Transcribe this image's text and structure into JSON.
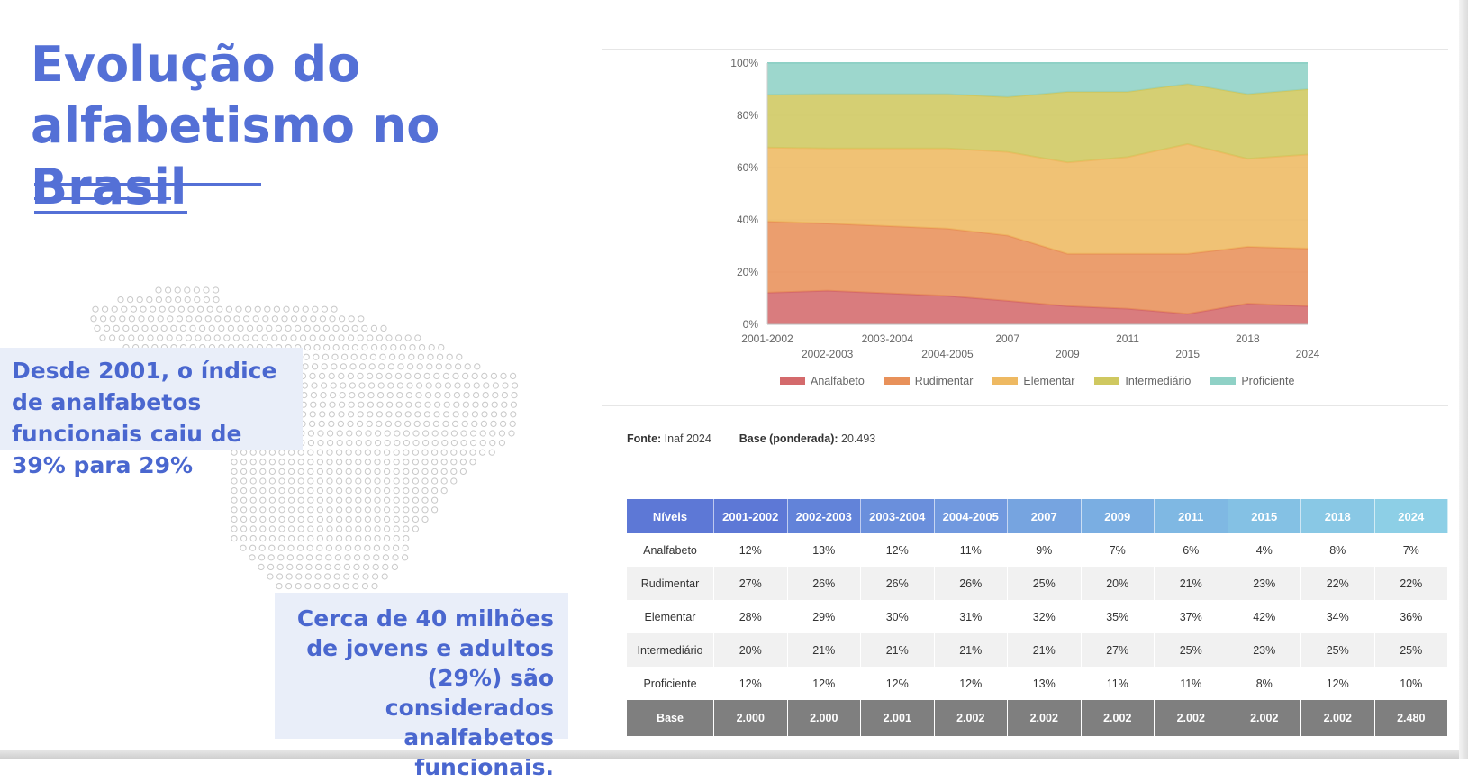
{
  "slide": {
    "title": "Evolução do alfabetismo no Brasil",
    "accent_color": "#5470d6",
    "callout_1": "Desde 2001, o índice de analfabetos funcionais caiu de 39% para 29%",
    "callout_2": "Cerca de 40 milhões de jovens e adultos (29%) são considerados analfabetos funcionais.",
    "decoration": "dotted-brazil-map"
  },
  "chart_data": {
    "type": "area",
    "stacked": true,
    "percent_stacked": true,
    "x": [
      "2001-2002",
      "2002-2003",
      "2003-2004",
      "2004-2005",
      "2007",
      "2009",
      "2011",
      "2015",
      "2018",
      "2024"
    ],
    "series": [
      {
        "name": "Analfabeto",
        "color": "#d46a6c",
        "values": [
          12,
          13,
          12,
          11,
          9,
          7,
          6,
          4,
          8,
          7
        ]
      },
      {
        "name": "Rudimentar",
        "color": "#e8915a",
        "values": [
          27,
          26,
          26,
          26,
          25,
          20,
          21,
          23,
          22,
          22
        ]
      },
      {
        "name": "Elementar",
        "color": "#eeb962",
        "values": [
          28,
          29,
          30,
          31,
          32,
          35,
          37,
          42,
          34,
          36
        ]
      },
      {
        "name": "Intermediário",
        "color": "#cfc860",
        "values": [
          20,
          21,
          21,
          21,
          21,
          27,
          25,
          23,
          25,
          25
        ]
      },
      {
        "name": "Proficiente",
        "color": "#8fd1c6",
        "values": [
          12,
          12,
          12,
          12,
          13,
          11,
          11,
          8,
          12,
          10
        ]
      }
    ],
    "y_ticks": [
      "0%",
      "20%",
      "40%",
      "60%",
      "80%",
      "100%"
    ],
    "ylim": [
      0,
      100
    ],
    "grid": true,
    "legend": "bottom"
  },
  "source": {
    "fonte_label": "Fonte:",
    "fonte_value": "Inaf 2024",
    "base_label": "Base (ponderada):",
    "base_value": "20.493"
  },
  "table": {
    "header_label": "Níveis",
    "columns": [
      "2001-2002",
      "2002-2003",
      "2003-2004",
      "2004-2005",
      "2007",
      "2009",
      "2011",
      "2015",
      "2018",
      "2024"
    ],
    "header_colors": [
      "#5d78d6",
      "#6283d9",
      "#6a8fdc",
      "#7199df",
      "#76a4e0",
      "#7aaee2",
      "#7fb8e3",
      "#84c1e4",
      "#89c8e5",
      "#8dcfe6"
    ],
    "rows": [
      {
        "label": "Analfabeto",
        "cells": [
          "12%",
          "13%",
          "12%",
          "11%",
          "9%",
          "7%",
          "6%",
          "4%",
          "8%",
          "7%"
        ]
      },
      {
        "label": "Rudimentar",
        "cells": [
          "27%",
          "26%",
          "26%",
          "26%",
          "25%",
          "20%",
          "21%",
          "23%",
          "22%",
          "22%"
        ]
      },
      {
        "label": "Elementar",
        "cells": [
          "28%",
          "29%",
          "30%",
          "31%",
          "32%",
          "35%",
          "37%",
          "42%",
          "34%",
          "36%"
        ]
      },
      {
        "label": "Intermediário",
        "cells": [
          "20%",
          "21%",
          "21%",
          "21%",
          "21%",
          "27%",
          "25%",
          "23%",
          "25%",
          "25%"
        ]
      },
      {
        "label": "Proficiente",
        "cells": [
          "12%",
          "12%",
          "12%",
          "12%",
          "13%",
          "11%",
          "11%",
          "8%",
          "12%",
          "10%"
        ]
      }
    ],
    "base_row": {
      "label": "Base",
      "cells": [
        "2.000",
        "2.000",
        "2.001",
        "2.002",
        "2.002",
        "2.002",
        "2.002",
        "2.002",
        "2.002",
        "2.480"
      ]
    }
  }
}
